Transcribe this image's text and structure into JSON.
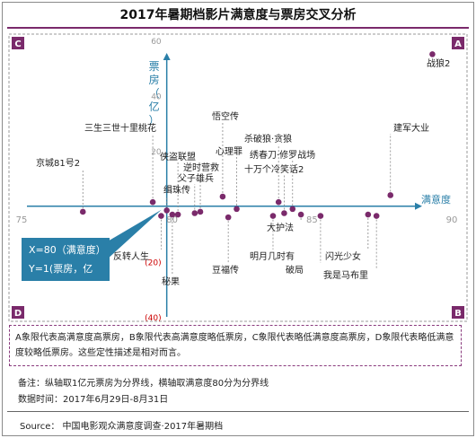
{
  "title": "2017年暑期档影片满意度与票房交叉分析",
  "quadrants": {
    "A": "A",
    "B": "B",
    "C": "C",
    "D": "D"
  },
  "colors": {
    "quad": "#7a2a6b",
    "axis": "#2a7fa8",
    "point": "#7a2a6b",
    "neg": "#cc0000"
  },
  "callout": {
    "line1": "X=80（满意度）",
    "line2": "Y=1(票房，亿元)"
  },
  "note": "A象限代表高满意度高票房，B象限代表高满意度略低票房，C象限代表略低满意度高票房，D象限代表略低满意度较略低票房。这些定性描述是相对而言。",
  "remark1": "备注：纵轴取1亿元票房为分界线，横轴取满意度80分为分界线",
  "remark2": "数据时间：2017年6月29日-8月31日",
  "source": "Source： 中国电影观众满意度调查·2017年暑期档",
  "chart_data": {
    "type": "scatter",
    "xlabel": "满意度",
    "ylabel": "票房（亿）",
    "xlim": [
      75,
      90
    ],
    "ylim": [
      -40,
      60
    ],
    "x_ticks": [
      "75",
      "80",
      "85",
      "90"
    ],
    "y_ticks": [
      "60",
      "40",
      "20",
      "(20)",
      "(40)"
    ],
    "points": [
      {
        "name": "战狼2",
        "x": 89.5,
        "y": 55.0
      },
      {
        "name": "建军大业",
        "x": 88.0,
        "y": 4.0
      },
      {
        "name": "京城81号2",
        "x": 77.0,
        "y": -2.0
      },
      {
        "name": "三生三世十里桃花",
        "x": 79.5,
        "y": 1.5
      },
      {
        "name": "侠盗联盟",
        "x": 80.4,
        "y": -3.0
      },
      {
        "name": "逆时营救",
        "x": 81.2,
        "y": -2.0
      },
      {
        "name": "父子雄兵",
        "x": 81.0,
        "y": -2.5
      },
      {
        "name": "悟空传",
        "x": 82.0,
        "y": 3.5
      },
      {
        "name": "心理罪",
        "x": 82.5,
        "y": -1.0
      },
      {
        "name": "杀破狼·贪狼",
        "x": 84.0,
        "y": 1.5
      },
      {
        "name": "绣春刀·修罗战场",
        "x": 84.5,
        "y": -1.0
      },
      {
        "name": "十万个冷笑话2",
        "x": 84.2,
        "y": -2.5
      },
      {
        "name": "反转人生",
        "x": 79.8,
        "y": -3.5
      },
      {
        "name": "秘果",
        "x": 80.2,
        "y": -3.0
      },
      {
        "name": "缉珠传",
        "x": 80.0,
        "y": -1.5
      },
      {
        "name": "豆福传",
        "x": 82.2,
        "y": -4.0
      },
      {
        "name": "明月几时有",
        "x": 83.8,
        "y": -3.5
      },
      {
        "name": "大护法",
        "x": 84.8,
        "y": -3.0
      },
      {
        "name": "破局",
        "x": 85.5,
        "y": -3.5
      },
      {
        "name": "闪光少女",
        "x": 87.2,
        "y": -3.0
      },
      {
        "name": "我是马布里",
        "x": 87.5,
        "y": -3.5
      }
    ]
  }
}
